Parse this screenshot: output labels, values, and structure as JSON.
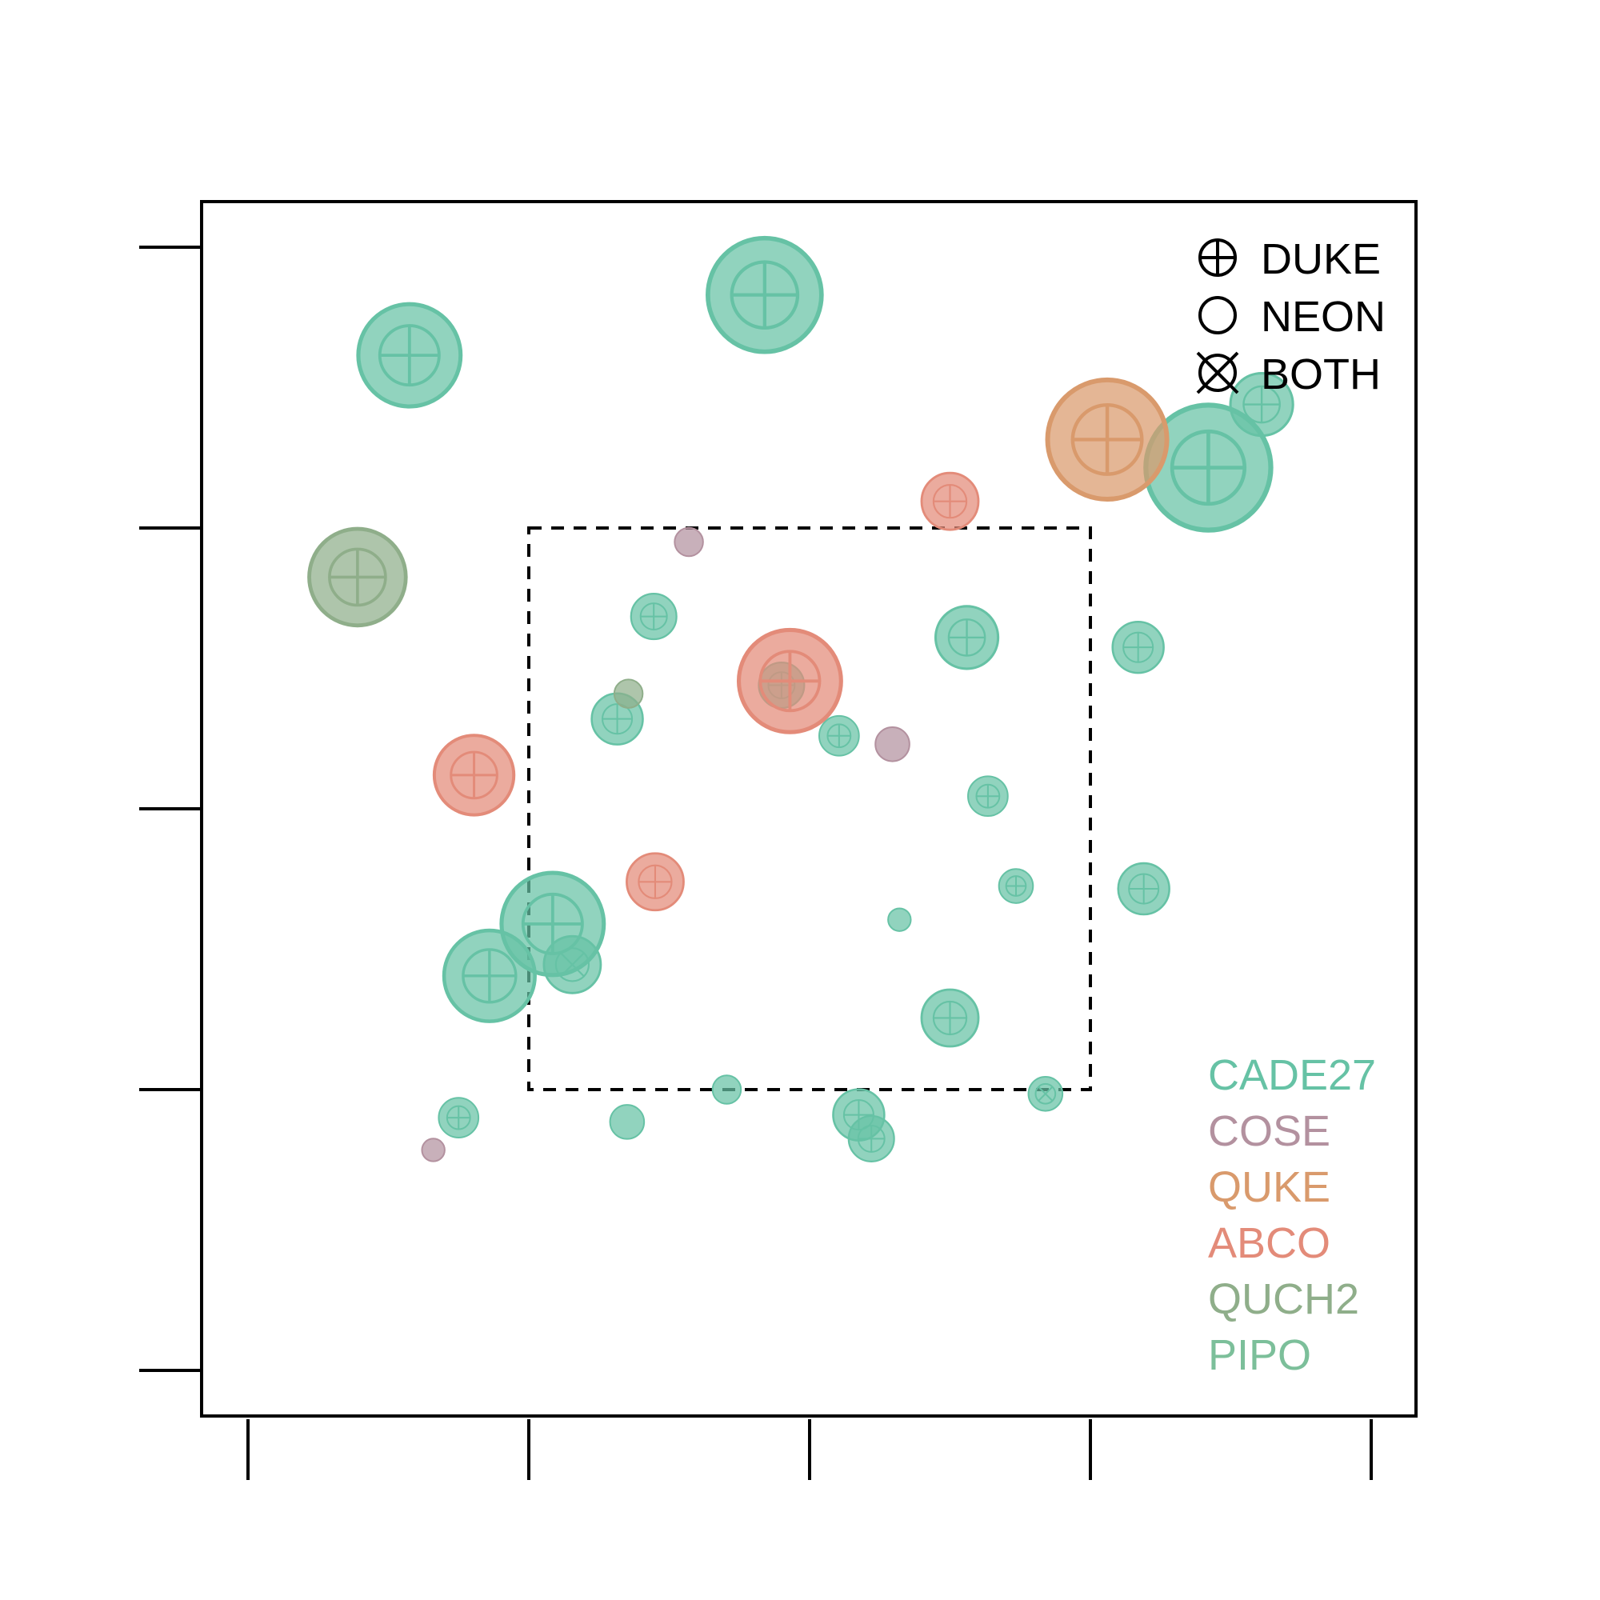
{
  "chart_data": {
    "type": "scatter",
    "title": "",
    "xlabel": "",
    "ylabel": "",
    "xlim": [
      -4,
      4
    ],
    "ylim": [
      -4,
      4
    ],
    "x_ticks": [
      -4,
      -2,
      0,
      2,
      4
    ],
    "y_ticks": [
      -4,
      -2,
      0,
      2,
      4
    ],
    "tick_labels_shown": false,
    "grid": false,
    "highlight_box": {
      "x": [
        -2,
        2
      ],
      "y": [
        -2,
        2
      ],
      "style": "dashed"
    },
    "legend": {
      "placement": "top-right",
      "entries": [
        {
          "symbol": "circle-plus",
          "label": "DUKE"
        },
        {
          "symbol": "circle",
          "label": "NEON"
        },
        {
          "symbol": "circle-x",
          "label": "BOTH"
        }
      ]
    },
    "species_legend": {
      "placement": "bottom-right",
      "entries": [
        {
          "label": "CADE27",
          "color": "#66c2a5"
        },
        {
          "label": "COSE",
          "color": "#b3919f"
        },
        {
          "label": "QUKE",
          "color": "#d99a6c"
        },
        {
          "label": "ABCO",
          "color": "#e38b79"
        },
        {
          "label": "QUCH2",
          "color": "#8fae8a"
        },
        {
          "label": "PIPO",
          "color": "#7cbf9a"
        }
      ]
    },
    "series": [
      {
        "name": "CADE27",
        "color": "#66c2a5",
        "points": [
          {
            "x": -2.85,
            "y": 3.23,
            "size": 9.0,
            "source": "DUKE"
          },
          {
            "x": -0.32,
            "y": 3.66,
            "size": 10.0,
            "source": "DUKE"
          },
          {
            "x": 2.84,
            "y": 2.43,
            "size": 11.0,
            "source": "DUKE"
          },
          {
            "x": 3.22,
            "y": 2.88,
            "size": 5.5,
            "source": "DUKE"
          },
          {
            "x": -1.11,
            "y": 1.37,
            "size": 4.0,
            "source": "DUKE"
          },
          {
            "x": 1.12,
            "y": 1.22,
            "size": 5.5,
            "source": "DUKE"
          },
          {
            "x": 2.34,
            "y": 1.15,
            "size": 4.5,
            "source": "DUKE"
          },
          {
            "x": -0.2,
            "y": 0.88,
            "size": 4.0,
            "source": "DUKE"
          },
          {
            "x": -1.37,
            "y": 0.64,
            "size": 4.5,
            "source": "DUKE"
          },
          {
            "x": 0.21,
            "y": 0.52,
            "size": 3.5,
            "source": "DUKE"
          },
          {
            "x": 1.27,
            "y": 0.09,
            "size": 3.5,
            "source": "DUKE"
          },
          {
            "x": 1.47,
            "y": -0.55,
            "size": 3.0,
            "source": "DUKE"
          },
          {
            "x": 2.38,
            "y": -0.57,
            "size": 4.5,
            "source": "DUKE"
          },
          {
            "x": 0.64,
            "y": -0.79,
            "size": 2.0,
            "source": "NEON"
          },
          {
            "x": -1.83,
            "y": -0.82,
            "size": 9.0,
            "source": "DUKE"
          },
          {
            "x": -1.69,
            "y": -1.11,
            "size": 5.0,
            "source": "BOTH"
          },
          {
            "x": -2.28,
            "y": -1.19,
            "size": 8.0,
            "source": "DUKE"
          },
          {
            "x": 1.0,
            "y": -1.49,
            "size": 5.0,
            "source": "DUKE"
          },
          {
            "x": -0.59,
            "y": -2.0,
            "size": 2.5,
            "source": "NEON"
          },
          {
            "x": 1.68,
            "y": -2.03,
            "size": 3.0,
            "source": "BOTH"
          },
          {
            "x": -2.5,
            "y": -2.2,
            "size": 3.5,
            "source": "DUKE"
          },
          {
            "x": -1.3,
            "y": -2.23,
            "size": 3.0,
            "source": "NEON"
          },
          {
            "x": 0.35,
            "y": -2.18,
            "size": 4.5,
            "source": "DUKE"
          },
          {
            "x": 0.44,
            "y": -2.35,
            "size": 4.0,
            "source": "DUKE"
          }
        ]
      },
      {
        "name": "COSE",
        "color": "#b3919f",
        "points": [
          {
            "x": -0.86,
            "y": 1.9,
            "size": 2.5,
            "source": "NEON"
          },
          {
            "x": 0.59,
            "y": 0.46,
            "size": 3.0,
            "source": "NEON"
          },
          {
            "x": -2.68,
            "y": -2.43,
            "size": 2.0,
            "source": "NEON"
          }
        ]
      },
      {
        "name": "QUKE",
        "color": "#d99a6c",
        "points": [
          {
            "x": 2.12,
            "y": 2.63,
            "size": 10.5,
            "source": "DUKE"
          }
        ]
      },
      {
        "name": "ABCO",
        "color": "#e38b79",
        "points": [
          {
            "x": 1.0,
            "y": 2.19,
            "size": 5.0,
            "source": "DUKE"
          },
          {
            "x": -0.14,
            "y": 0.91,
            "size": 9.0,
            "source": "DUKE"
          },
          {
            "x": -2.39,
            "y": 0.24,
            "size": 7.0,
            "source": "DUKE"
          },
          {
            "x": -1.1,
            "y": -0.52,
            "size": 5.0,
            "source": "DUKE"
          }
        ]
      },
      {
        "name": "QUCH2",
        "color": "#8fae8a",
        "points": [
          {
            "x": -3.22,
            "y": 1.65,
            "size": 8.5,
            "source": "DUKE"
          },
          {
            "x": -1.29,
            "y": 0.82,
            "size": 2.5,
            "source": "NEON"
          }
        ]
      },
      {
        "name": "PIPO",
        "color": "#7cbf9a",
        "points": []
      }
    ]
  }
}
